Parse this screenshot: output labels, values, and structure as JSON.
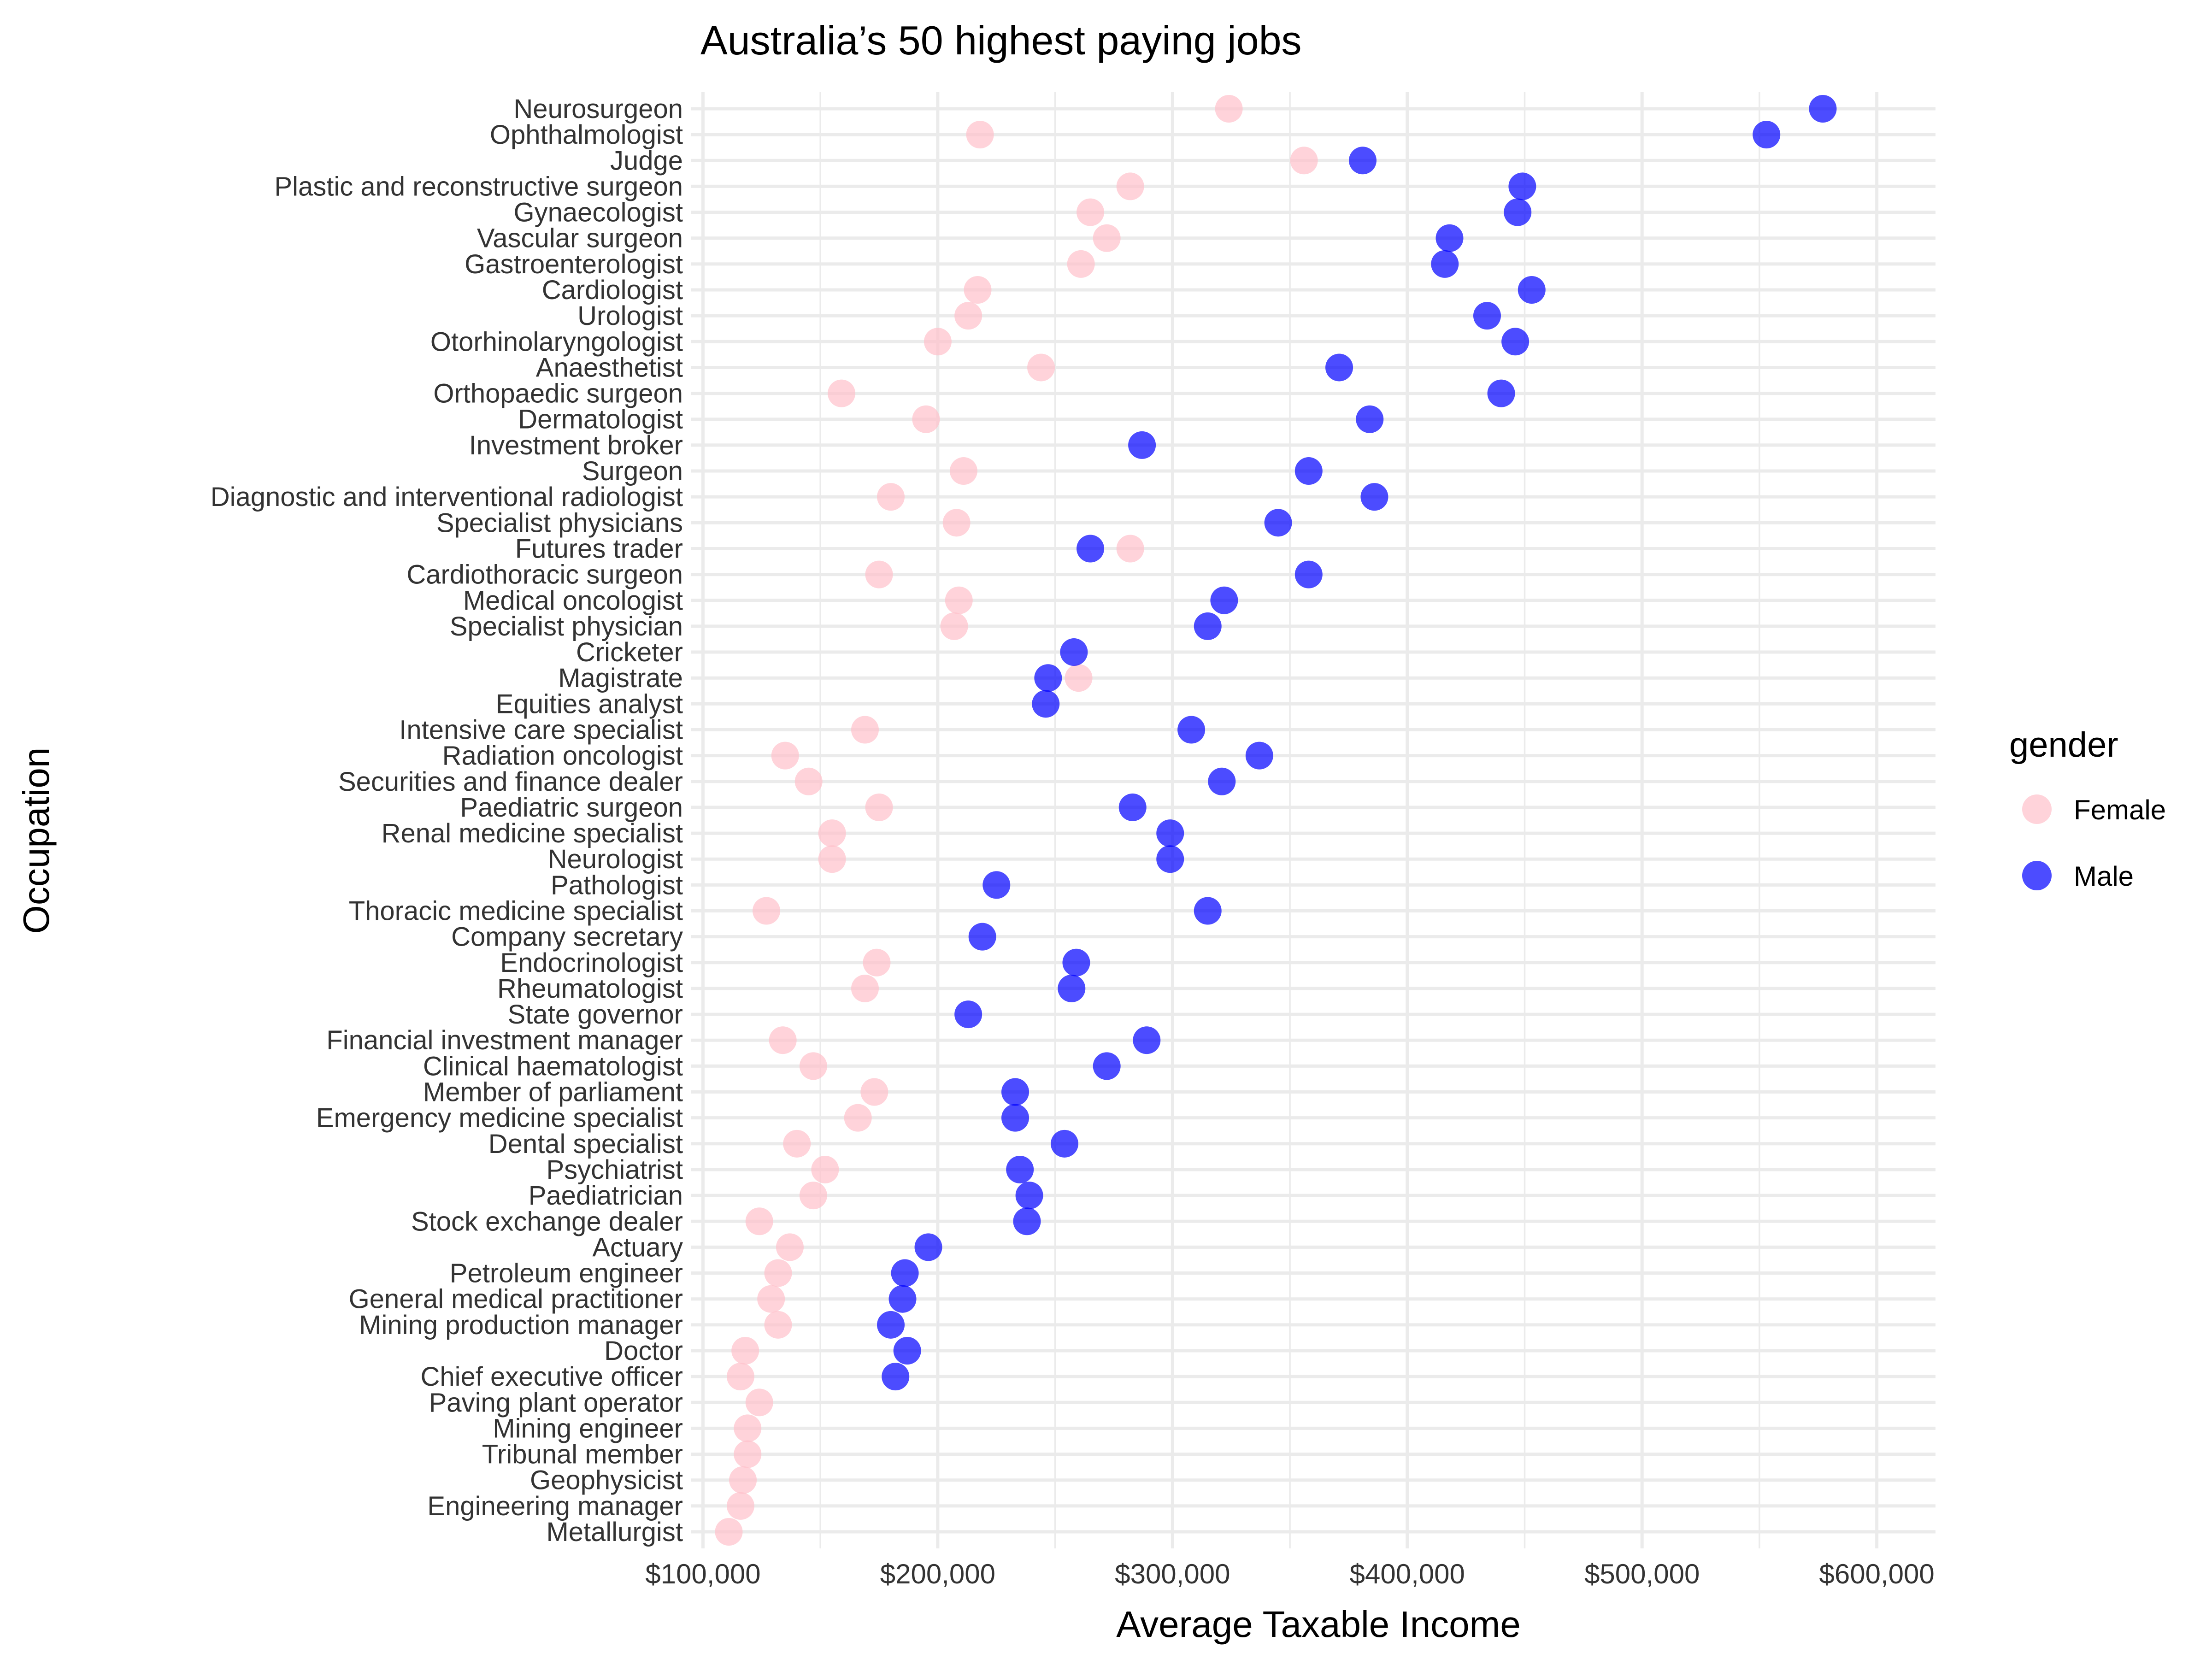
{
  "chart_data": {
    "type": "scatter",
    "title": "Australia’s 50 highest paying jobs",
    "xlabel": "Average Taxable Income",
    "ylabel": "Occupation",
    "xlim": [
      95000,
      625000
    ],
    "xticks": [
      100000,
      200000,
      300000,
      400000,
      500000,
      600000
    ],
    "xtick_labels": [
      "$100,000",
      "$200,000",
      "$300,000",
      "$400,000",
      "$500,000",
      "$600,000"
    ],
    "grid": true,
    "legend": {
      "title": "gender",
      "placement": "right",
      "entries": [
        "Female",
        "Male"
      ]
    },
    "colors": {
      "Female": "#ffc0cb",
      "Male": "#0000ff"
    },
    "categories": [
      "Neurosurgeon",
      "Ophthalmologist",
      "Judge",
      "Plastic and reconstructive surgeon",
      "Gynaecologist",
      "Vascular surgeon",
      "Gastroenterologist",
      "Cardiologist",
      "Urologist",
      "Otorhinolaryngologist",
      "Anaesthetist",
      "Orthopaedic surgeon",
      "Dermatologist",
      "Investment broker",
      "Surgeon",
      "Diagnostic and interventional radiologist",
      "Specialist physicians",
      "Futures trader",
      "Cardiothoracic surgeon",
      "Medical oncologist",
      "Specialist physician",
      "Cricketer",
      "Magistrate",
      "Equities analyst",
      "Intensive care specialist",
      "Radiation oncologist",
      "Securities and finance dealer",
      "Paediatric surgeon",
      "Renal medicine specialist",
      "Neurologist",
      "Pathologist",
      "Thoracic medicine specialist",
      "Company secretary",
      "Endocrinologist",
      "Rheumatologist",
      "State governor",
      "Financial investment manager",
      "Clinical haematologist",
      "Member of parliament",
      "Emergency medicine specialist",
      "Dental specialist",
      "Psychiatrist",
      "Paediatrician",
      "Stock exchange dealer",
      "Actuary",
      "Petroleum engineer",
      "General medical practitioner",
      "Mining production manager",
      "Doctor",
      "Chief executive officer",
      "Paving plant operator",
      "Mining engineer",
      "Tribunal member",
      "Geophysicist",
      "Engineering manager",
      "Metallurgist"
    ],
    "series": [
      {
        "name": "Female",
        "values": [
          324000,
          218000,
          356000,
          282000,
          265000,
          272000,
          261000,
          217000,
          213000,
          200000,
          244000,
          159000,
          195000,
          null,
          211000,
          180000,
          208000,
          282000,
          175000,
          209000,
          207000,
          null,
          260000,
          null,
          169000,
          135000,
          145000,
          175000,
          155000,
          155000,
          null,
          127000,
          null,
          174000,
          169000,
          null,
          134000,
          147000,
          173000,
          166000,
          140000,
          152000,
          147000,
          124000,
          137000,
          132000,
          129000,
          132000,
          118000,
          116000,
          124000,
          119000,
          119000,
          117000,
          116000,
          111000
        ]
      },
      {
        "name": "Male",
        "values": [
          577000,
          553000,
          381000,
          449000,
          447000,
          418000,
          416000,
          453000,
          434000,
          446000,
          371000,
          440000,
          384000,
          287000,
          358000,
          386000,
          345000,
          265000,
          358000,
          322000,
          315000,
          258000,
          247000,
          246000,
          308000,
          337000,
          321000,
          283000,
          299000,
          299000,
          225000,
          315000,
          219000,
          259000,
          257000,
          213000,
          289000,
          272000,
          233000,
          233000,
          254000,
          235000,
          239000,
          238000,
          196000,
          186000,
          185000,
          180000,
          187000,
          182000,
          null,
          null,
          null,
          null,
          null,
          null
        ]
      }
    ]
  }
}
